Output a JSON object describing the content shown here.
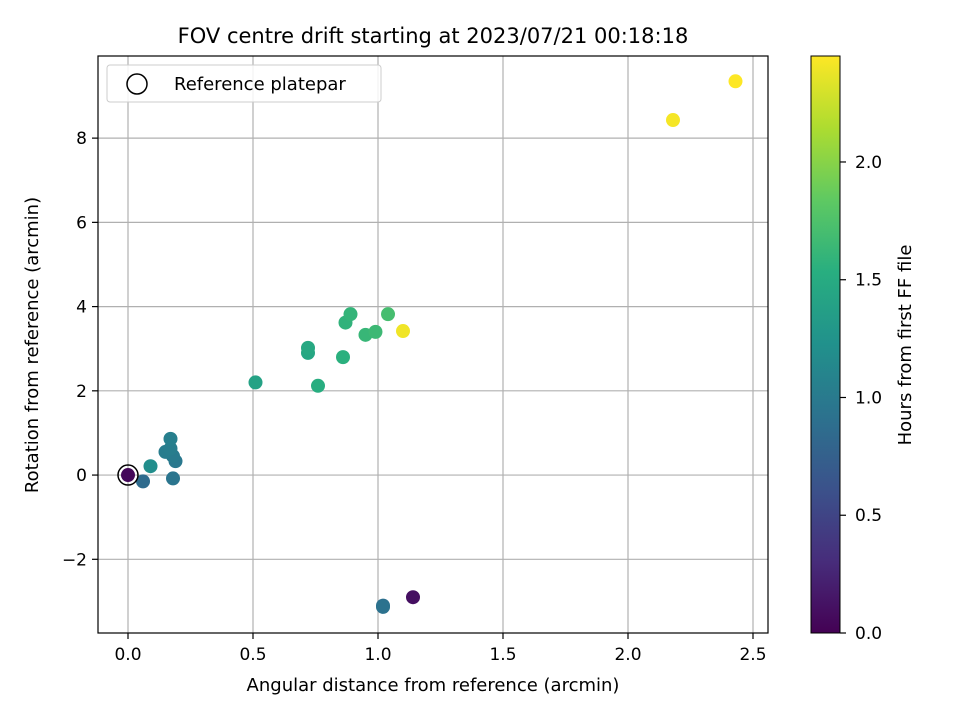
{
  "chart_data": {
    "type": "scatter",
    "title": "FOV centre drift starting at 2023/07/21 00:18:18",
    "xlabel": "Angular distance from reference (arcmin)",
    "ylabel": "Rotation from reference (arcmin)",
    "xlim": [
      -0.12,
      2.56
    ],
    "ylim": [
      -3.75,
      9.95
    ],
    "xticks": [
      0.0,
      0.5,
      1.0,
      1.5,
      2.0,
      2.5
    ],
    "xtick_labels": [
      "0.0",
      "0.5",
      "1.0",
      "1.5",
      "2.0",
      "2.5"
    ],
    "yticks": [
      -2,
      0,
      2,
      4,
      6,
      8
    ],
    "ytick_labels": [
      "−2",
      "0",
      "2",
      "4",
      "6",
      "8"
    ],
    "grid": true,
    "legend": {
      "placement": "top-left",
      "entries": [
        "Reference platepar"
      ]
    },
    "colorbar": {
      "label": "Hours from first FF file",
      "range": [
        0.0,
        2.45
      ],
      "ticks": [
        0.0,
        0.5,
        1.0,
        1.5,
        2.0
      ],
      "tick_labels": [
        "0.0",
        "0.5",
        "1.0",
        "1.5",
        "2.0"
      ],
      "colormap": "viridis"
    },
    "reference_point": {
      "x": 0.0,
      "y": 0.0
    },
    "points": [
      {
        "x": 0.0,
        "y": 0.0,
        "h": 0.05
      },
      {
        "x": 1.14,
        "y": -2.9,
        "h": 0.1
      },
      {
        "x": 0.06,
        "y": -0.15,
        "h": 0.85
      },
      {
        "x": 1.02,
        "y": -3.1,
        "h": 0.9
      },
      {
        "x": 1.02,
        "y": -3.13,
        "h": 0.92
      },
      {
        "x": 0.18,
        "y": -0.08,
        "h": 0.95
      },
      {
        "x": 0.19,
        "y": 0.33,
        "h": 0.98
      },
      {
        "x": 0.18,
        "y": 0.45,
        "h": 1.0
      },
      {
        "x": 0.15,
        "y": 0.55,
        "h": 1.02
      },
      {
        "x": 0.17,
        "y": 0.63,
        "h": 1.03
      },
      {
        "x": 0.17,
        "y": 0.86,
        "h": 1.05
      },
      {
        "x": 0.09,
        "y": 0.21,
        "h": 1.2
      },
      {
        "x": 0.51,
        "y": 2.2,
        "h": 1.4
      },
      {
        "x": 0.72,
        "y": 2.9,
        "h": 1.45
      },
      {
        "x": 0.72,
        "y": 3.02,
        "h": 1.47
      },
      {
        "x": 0.76,
        "y": 2.12,
        "h": 1.52
      },
      {
        "x": 0.86,
        "y": 2.8,
        "h": 1.55
      },
      {
        "x": 0.87,
        "y": 3.62,
        "h": 1.58
      },
      {
        "x": 0.89,
        "y": 3.82,
        "h": 1.6
      },
      {
        "x": 0.95,
        "y": 3.33,
        "h": 1.62
      },
      {
        "x": 0.99,
        "y": 3.4,
        "h": 1.65
      },
      {
        "x": 1.04,
        "y": 3.82,
        "h": 1.7
      },
      {
        "x": 1.1,
        "y": 3.42,
        "h": 2.4
      },
      {
        "x": 2.18,
        "y": 8.43,
        "h": 2.42
      },
      {
        "x": 2.43,
        "y": 9.35,
        "h": 2.45
      }
    ]
  }
}
